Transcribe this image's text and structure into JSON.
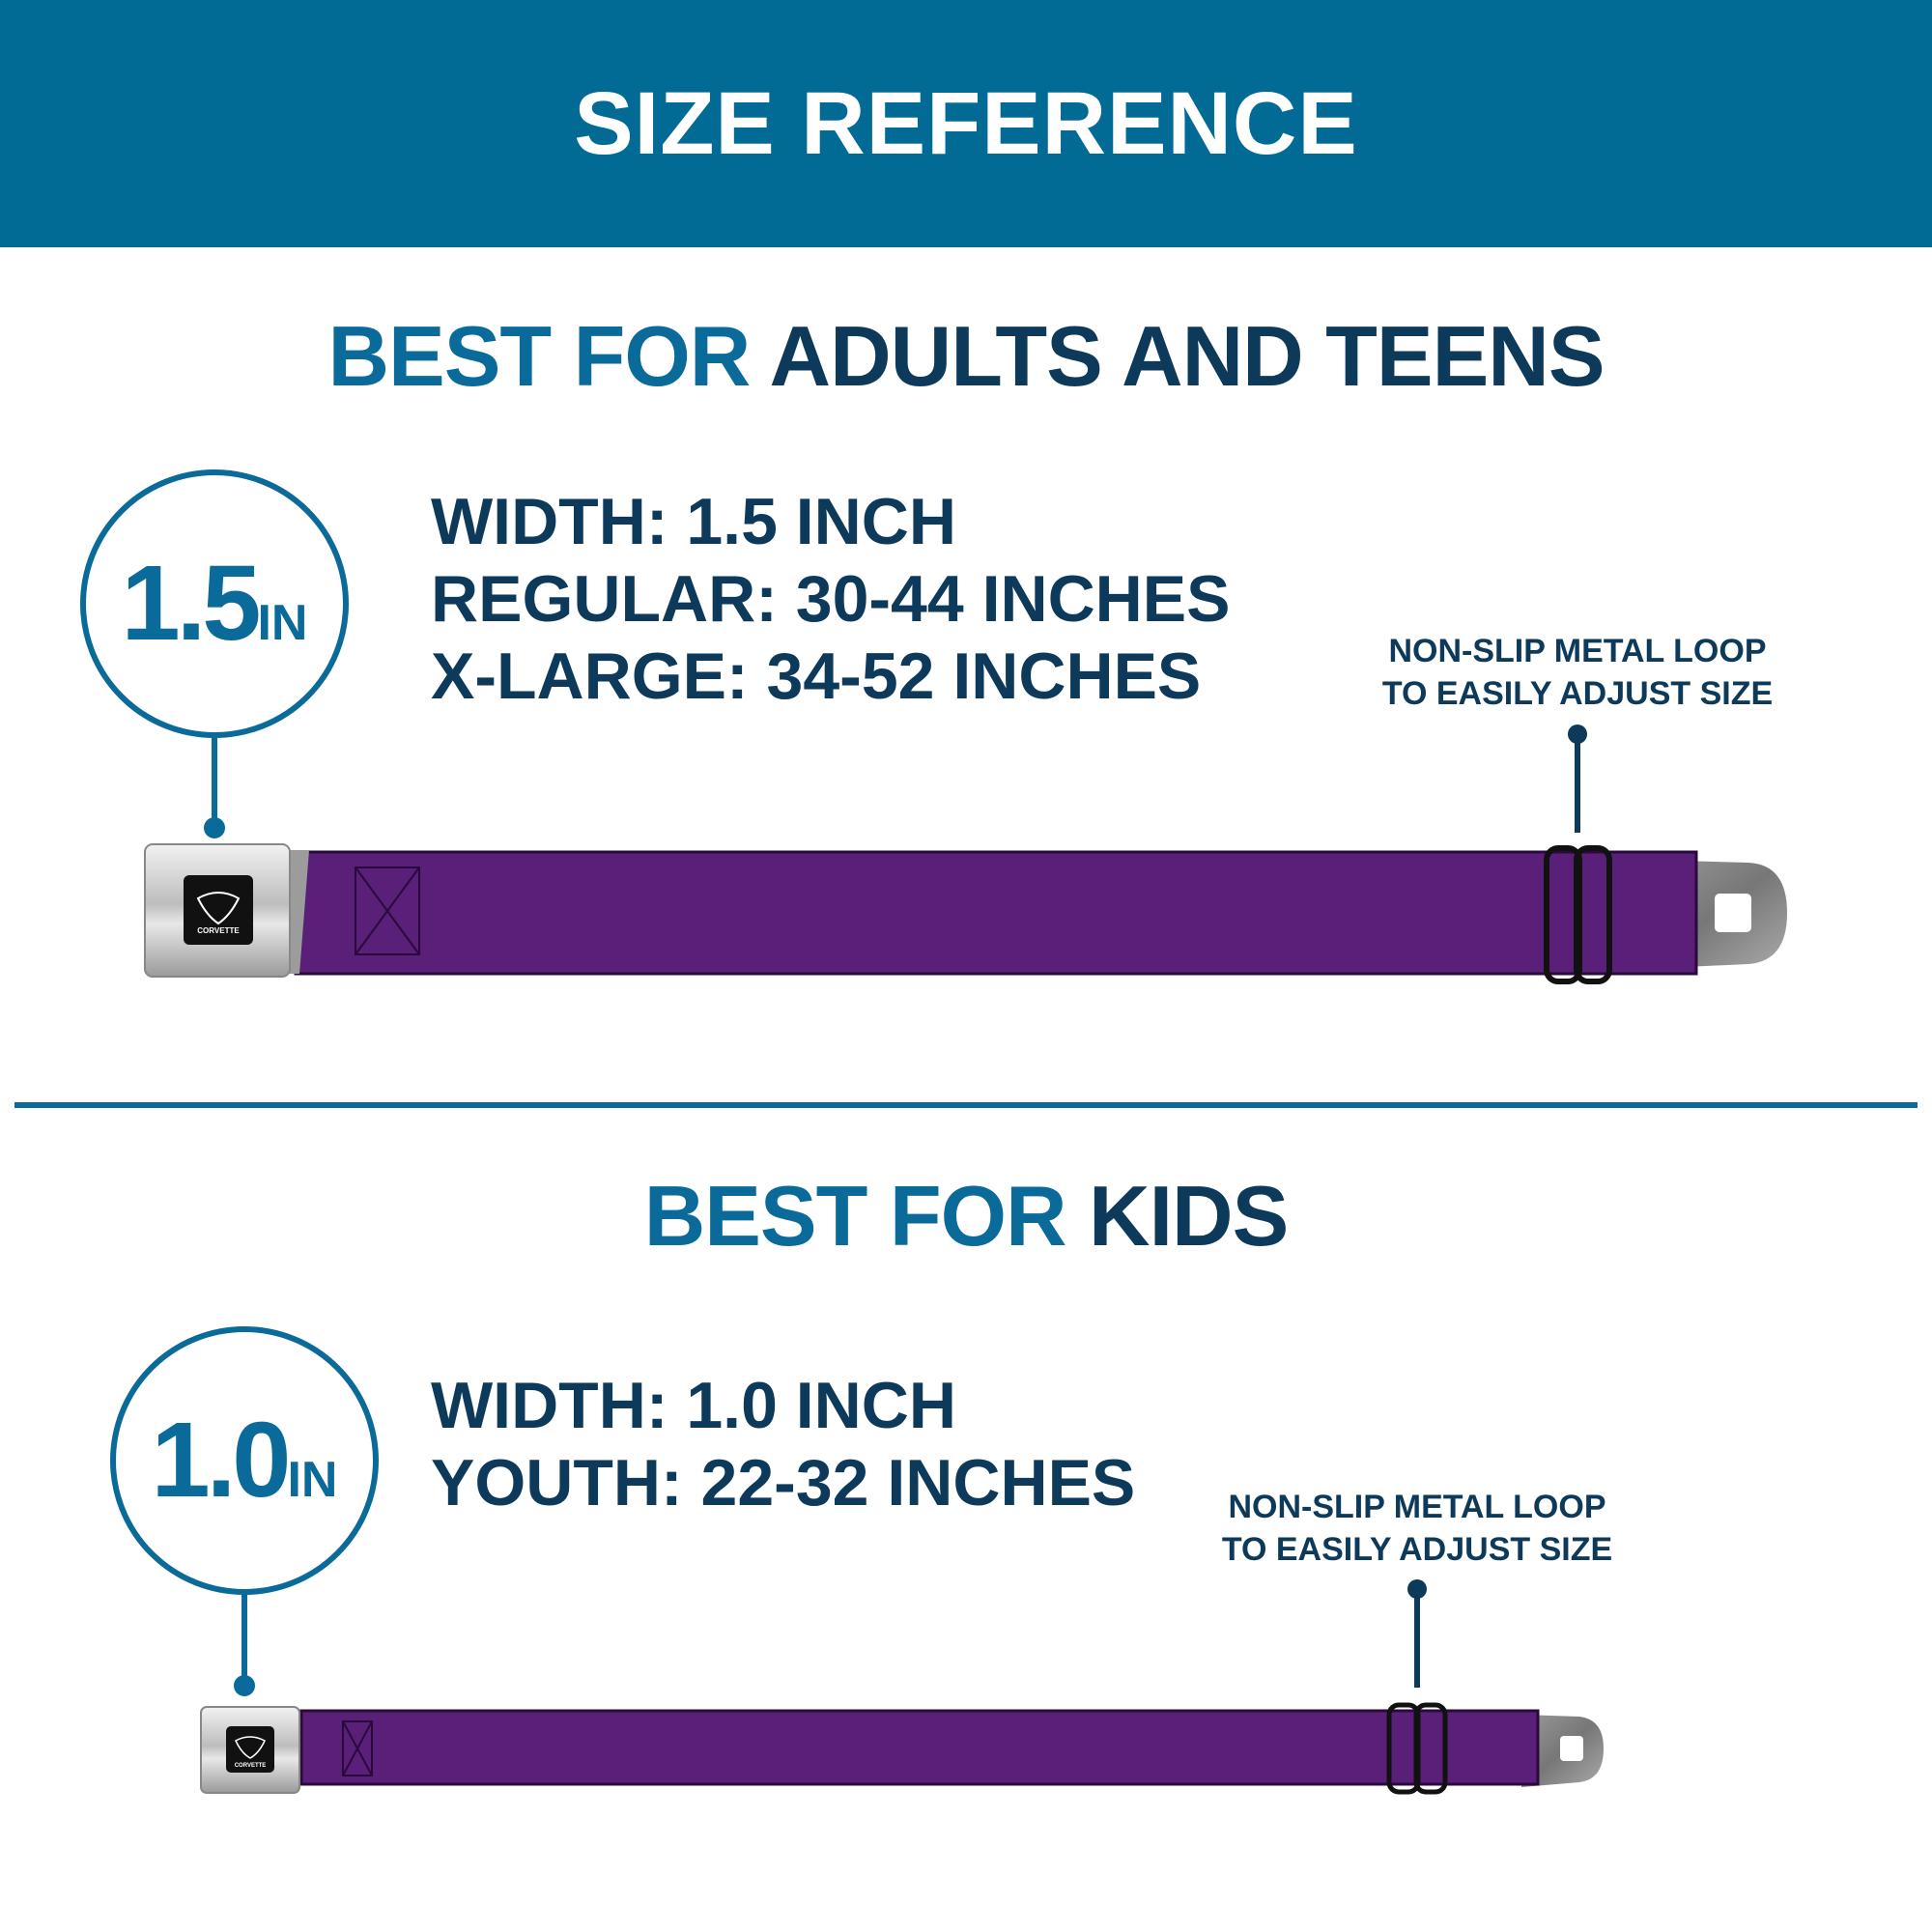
{
  "header": {
    "title": "SIZE REFERENCE"
  },
  "colors": {
    "header_bg": "#016a95",
    "accent_blue": "#0a6a9a",
    "navy": "#0d3a5a",
    "strap_purple": "#5a1f78"
  },
  "adults": {
    "heading_accent": "BEST FOR",
    "heading_main": "ADULTS AND TEENS",
    "badge_value": "1.5",
    "badge_unit": "IN",
    "specs": [
      "WIDTH: 1.5 INCH",
      "REGULAR: 30-44 INCHES",
      "X-LARGE: 34-52 INCHES"
    ],
    "note": [
      "NON-SLIP METAL LOOP",
      "TO EASILY ADJUST SIZE"
    ],
    "buckle_logo": "CORVETTE"
  },
  "kids": {
    "heading_accent": "BEST FOR",
    "heading_main": "KIDS",
    "badge_value": "1.0",
    "badge_unit": "IN",
    "specs": [
      "WIDTH: 1.0 INCH",
      "YOUTH: 22-32 INCHES"
    ],
    "note": [
      "NON-SLIP METAL LOOP",
      "TO EASILY ADJUST SIZE"
    ],
    "buckle_logo": "CORVETTE"
  }
}
